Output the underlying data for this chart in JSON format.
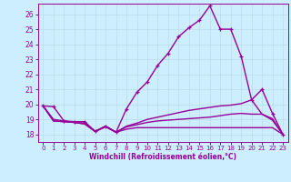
{
  "xlabel": "Windchill (Refroidissement éolien,°C)",
  "ylabel": "",
  "bg_color": "#cceeff",
  "line_color": "#990099",
  "grid_color": "#b8dde8",
  "xlim": [
    -0.5,
    23.5
  ],
  "ylim": [
    17.5,
    26.7
  ],
  "xticks": [
    0,
    1,
    2,
    3,
    4,
    5,
    6,
    7,
    8,
    9,
    10,
    11,
    12,
    13,
    14,
    15,
    16,
    17,
    18,
    19,
    20,
    21,
    22,
    23
  ],
  "yticks": [
    18,
    19,
    20,
    21,
    22,
    23,
    24,
    25,
    26
  ],
  "lines": [
    {
      "x": [
        0,
        1,
        2,
        3,
        4,
        5,
        6,
        7,
        8,
        9,
        10,
        11,
        12,
        13,
        14,
        15,
        16,
        17,
        18,
        19,
        20,
        21,
        22,
        23
      ],
      "y": [
        19.9,
        19.85,
        18.9,
        18.85,
        18.85,
        18.2,
        18.55,
        18.15,
        19.7,
        20.8,
        21.5,
        22.6,
        23.4,
        24.5,
        25.1,
        25.6,
        26.55,
        25.0,
        25.0,
        23.2,
        20.3,
        21.0,
        19.4,
        18.0
      ],
      "marker": true,
      "linewidth": 1.0
    },
    {
      "x": [
        0,
        1,
        2,
        3,
        4,
        5,
        6,
        7,
        8,
        9,
        10,
        11,
        12,
        13,
        14,
        15,
        16,
        17,
        18,
        19,
        20,
        21,
        22,
        23
      ],
      "y": [
        19.9,
        19.0,
        18.9,
        18.8,
        18.75,
        18.2,
        18.5,
        18.15,
        18.55,
        18.75,
        19.0,
        19.15,
        19.3,
        19.45,
        19.6,
        19.7,
        19.8,
        19.9,
        19.95,
        20.05,
        20.3,
        19.35,
        19.05,
        18.0
      ],
      "marker": false,
      "linewidth": 1.0
    },
    {
      "x": [
        0,
        1,
        2,
        3,
        4,
        5,
        6,
        7,
        8,
        9,
        10,
        11,
        12,
        13,
        14,
        15,
        16,
        17,
        18,
        19,
        20,
        21,
        22,
        23
      ],
      "y": [
        19.9,
        18.9,
        18.85,
        18.8,
        18.7,
        18.2,
        18.55,
        18.15,
        18.35,
        18.45,
        18.45,
        18.45,
        18.45,
        18.45,
        18.45,
        18.45,
        18.45,
        18.45,
        18.45,
        18.45,
        18.45,
        18.45,
        18.45,
        18.0
      ],
      "marker": false,
      "linewidth": 1.0
    },
    {
      "x": [
        0,
        1,
        2,
        3,
        4,
        5,
        6,
        7,
        8,
        9,
        10,
        11,
        12,
        13,
        14,
        15,
        16,
        17,
        18,
        19,
        20,
        21,
        22,
        23
      ],
      "y": [
        19.9,
        18.9,
        18.85,
        18.8,
        18.7,
        18.2,
        18.55,
        18.15,
        18.5,
        18.65,
        18.8,
        18.9,
        18.95,
        19.0,
        19.05,
        19.1,
        19.15,
        19.25,
        19.35,
        19.4,
        19.35,
        19.35,
        18.95,
        18.0
      ],
      "marker": false,
      "linewidth": 1.0
    }
  ]
}
